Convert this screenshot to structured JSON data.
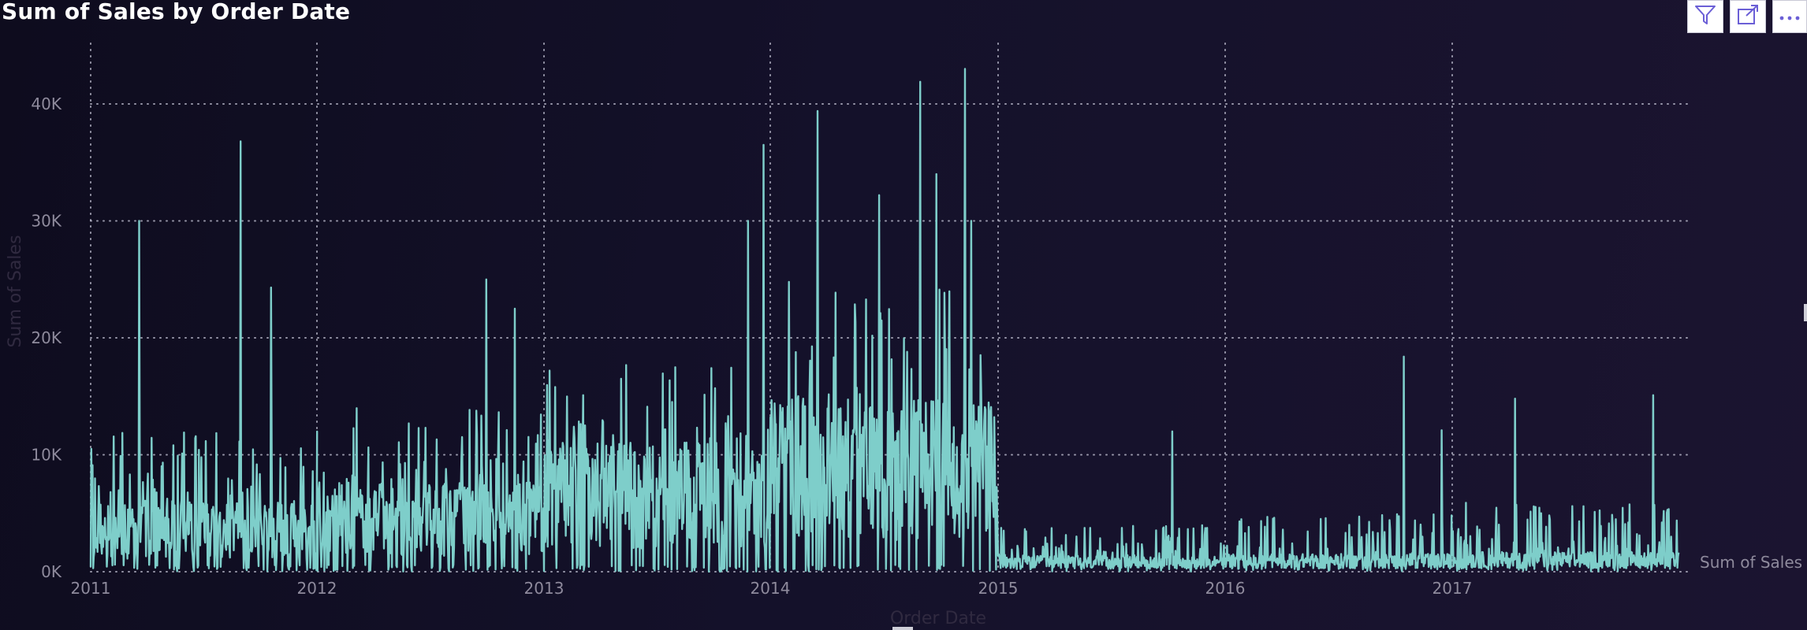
{
  "visual": {
    "title": "Sum of Sales by Order Date"
  },
  "toolbar": {
    "filter_icon": "filter-icon",
    "focus_icon": "focus-mode-icon",
    "more_icon": "more-options-icon"
  },
  "colors": {
    "series": "#7ececa",
    "grid": "#cfcfe0",
    "tick": "#8e8a9c",
    "axis_title": "#302a40"
  },
  "chart_data": {
    "type": "line",
    "title": "Sum of Sales by Order Date",
    "xlabel": "Order Date",
    "ylabel": "Sum of Sales",
    "x_ticks": [
      "2011",
      "2012",
      "2013",
      "2014",
      "2015",
      "2016",
      "2017"
    ],
    "y_ticks": [
      "0K",
      "10K",
      "20K",
      "30K",
      "40K"
    ],
    "ylim": [
      0,
      40000
    ],
    "xlim": [
      "2011-01-01",
      "2017-12-31"
    ],
    "grid": true,
    "legend": "right",
    "series": [
      {
        "name": "Sum of Sales",
        "granularity": "daily",
        "yearly_levels": [
          {
            "year": 2011,
            "typical": 3500,
            "high": 12000
          },
          {
            "year": 2012,
            "typical": 4500,
            "high": 14000
          },
          {
            "year": 2013,
            "typical": 6500,
            "high": 18000
          },
          {
            "year": 2014,
            "typical": 9000,
            "high": 25000
          },
          {
            "year": 2015,
            "typical": 800,
            "high": 4000
          },
          {
            "year": 2016,
            "typical": 900,
            "high": 5000
          },
          {
            "year": 2017,
            "typical": 1000,
            "high": 6000
          }
        ],
        "peaks": [
          {
            "date": "2011-03-20",
            "value": 30000
          },
          {
            "date": "2011-08-30",
            "value": 36800
          },
          {
            "date": "2011-10-18",
            "value": 24300
          },
          {
            "date": "2012-09-30",
            "value": 25000
          },
          {
            "date": "2012-11-15",
            "value": 22500
          },
          {
            "date": "2013-11-25",
            "value": 30000
          },
          {
            "date": "2013-12-20",
            "value": 36500
          },
          {
            "date": "2014-03-18",
            "value": 39400
          },
          {
            "date": "2014-06-25",
            "value": 32200
          },
          {
            "date": "2014-08-30",
            "value": 41900
          },
          {
            "date": "2014-09-25",
            "value": 34000
          },
          {
            "date": "2014-11-10",
            "value": 43000
          },
          {
            "date": "2014-11-20",
            "value": 30000
          },
          {
            "date": "2015-10-08",
            "value": 12000
          },
          {
            "date": "2016-10-15",
            "value": 18400
          },
          {
            "date": "2016-12-15",
            "value": 12100
          },
          {
            "date": "2017-04-12",
            "value": 14800
          },
          {
            "date": "2017-11-20",
            "value": 15100
          }
        ]
      }
    ]
  }
}
